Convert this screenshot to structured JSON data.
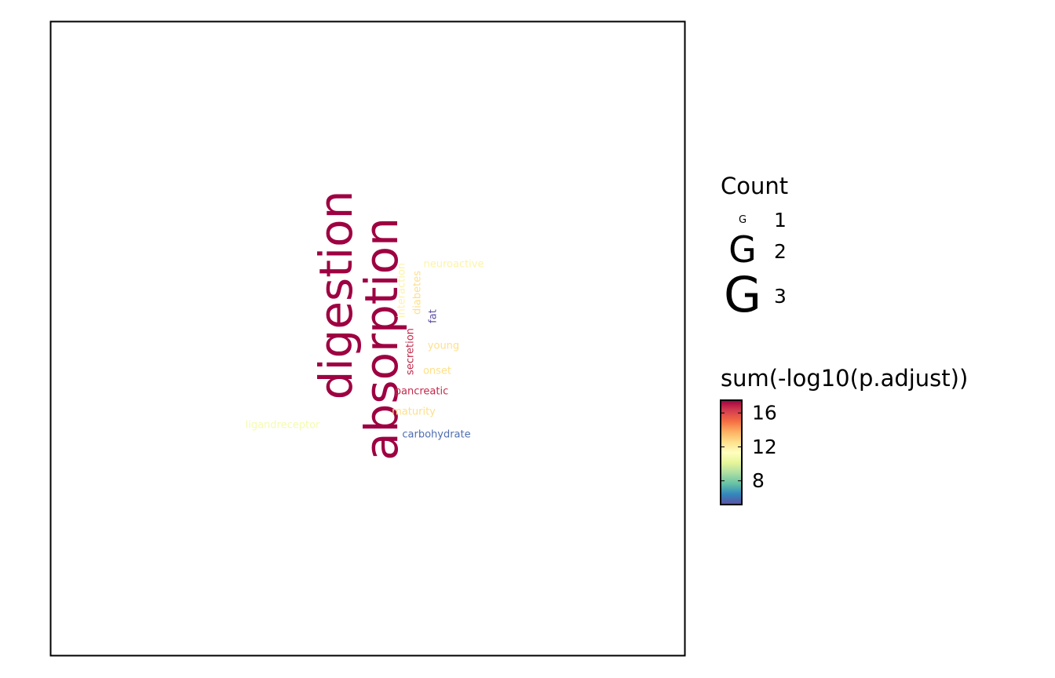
{
  "chart_data": {
    "type": "wordcloud",
    "words": [
      {
        "word": "digestion",
        "count": 3,
        "score": 17.2,
        "color": "#9e0142",
        "vertical": true
      },
      {
        "word": "absorption",
        "count": 3,
        "score": 17.0,
        "color": "#9e0142",
        "vertical": true
      },
      {
        "word": "neuroactive",
        "count": 1,
        "score": 11.0,
        "color": "#fdf3a8",
        "vertical": false
      },
      {
        "word": "interaction",
        "count": 1,
        "score": 11.0,
        "color": "#fdf3a8",
        "vertical": true
      },
      {
        "word": "diabetes",
        "count": 1,
        "score": 12.0,
        "color": "#fee08b",
        "vertical": true
      },
      {
        "word": "fat",
        "count": 1,
        "score": 5.5,
        "color": "#5e4fa2",
        "vertical": true
      },
      {
        "word": "secretion",
        "count": 1,
        "score": 15.5,
        "color": "#c2294a",
        "vertical": true
      },
      {
        "word": "young",
        "count": 1,
        "score": 12.0,
        "color": "#fee08b",
        "vertical": false
      },
      {
        "word": "onset",
        "count": 1,
        "score": 12.0,
        "color": "#fee08b",
        "vertical": false
      },
      {
        "word": "pancreatic",
        "count": 1,
        "score": 15.5,
        "color": "#c2294a",
        "vertical": false
      },
      {
        "word": "maturity",
        "count": 1,
        "score": 12.0,
        "color": "#fee08b",
        "vertical": false
      },
      {
        "word": "ligandreceptor",
        "count": 1,
        "score": 10.5,
        "color": "#f5fbae",
        "vertical": false
      },
      {
        "word": "carbohydrate",
        "count": 1,
        "score": 6.0,
        "color": "#4e6fb0",
        "vertical": false
      }
    ],
    "legend_size": {
      "title": "Count",
      "glyph": "G",
      "entries": [
        "1",
        "2",
        "3"
      ]
    },
    "legend_color": {
      "title": "sum(-log10(p.adjust))",
      "ticks": [
        "16",
        "12",
        "8"
      ],
      "tick_values": [
        16,
        12,
        8
      ],
      "range": [
        5.2,
        17.5
      ],
      "colors": [
        "#9e0142",
        "#d53e4f",
        "#f46d43",
        "#fdae61",
        "#fee08b",
        "#ffffbf",
        "#e6f598",
        "#abdda4",
        "#66c2a5",
        "#3288bd",
        "#5e4fa2"
      ]
    }
  }
}
